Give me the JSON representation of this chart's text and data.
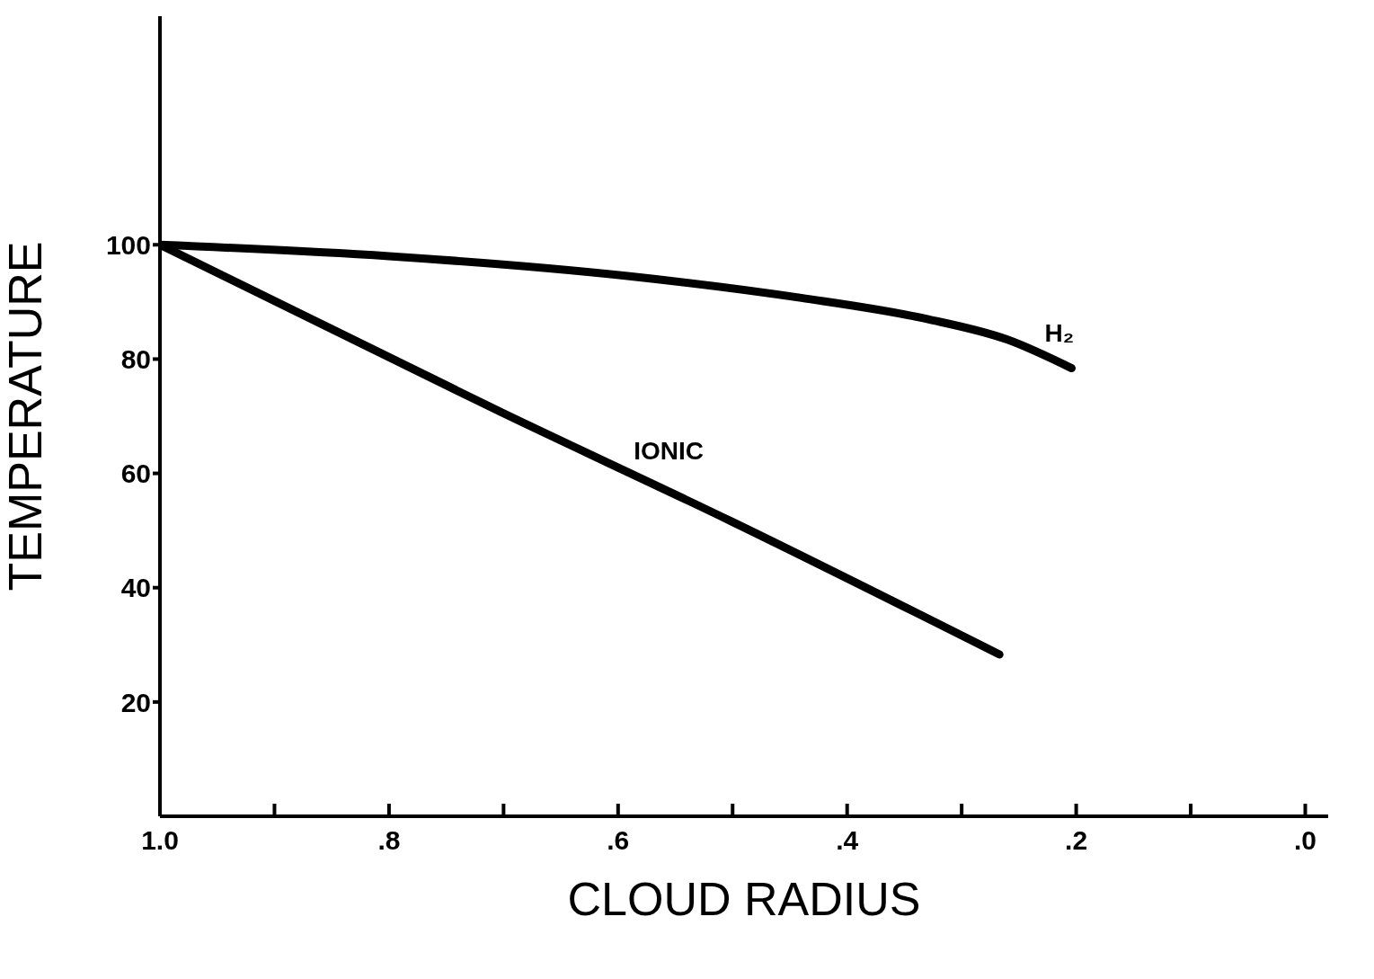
{
  "chart_data": {
    "type": "line",
    "xlabel": "CLOUD RADIUS",
    "ylabel": "TEMPERATURE",
    "xlim": [
      1.0,
      -0.02
    ],
    "xticks": [
      {
        "value": 1.0,
        "label": "1.0"
      },
      {
        "value": 0.9,
        "label": null
      },
      {
        "value": 0.8,
        "label": ".8"
      },
      {
        "value": 0.7,
        "label": null
      },
      {
        "value": 0.6,
        "label": ".6"
      },
      {
        "value": 0.5,
        "label": null
      },
      {
        "value": 0.4,
        "label": ".4"
      },
      {
        "value": 0.3,
        "label": null
      },
      {
        "value": 0.2,
        "label": ".2"
      },
      {
        "value": 0.1,
        "label": null
      },
      {
        "value": 0.0,
        "label": ".0"
      }
    ],
    "ylim": [
      0,
      140
    ],
    "yticks": [
      20,
      40,
      60,
      80,
      100
    ],
    "marker": "none",
    "line_style": "solid",
    "series": [
      {
        "name": "H₂",
        "color": "#000000",
        "x": [
          1.0,
          0.8,
          0.59,
          0.44,
          0.33,
          0.26,
          0.204
        ],
        "values": [
          100,
          98,
          94.5,
          90.7,
          87,
          83.4,
          78.4
        ]
      },
      {
        "name": "IONIC",
        "color": "#000000",
        "x": [
          1.0,
          0.7,
          0.5,
          0.267
        ],
        "values": [
          100,
          70.5,
          51.5,
          28.3
        ]
      }
    ]
  }
}
